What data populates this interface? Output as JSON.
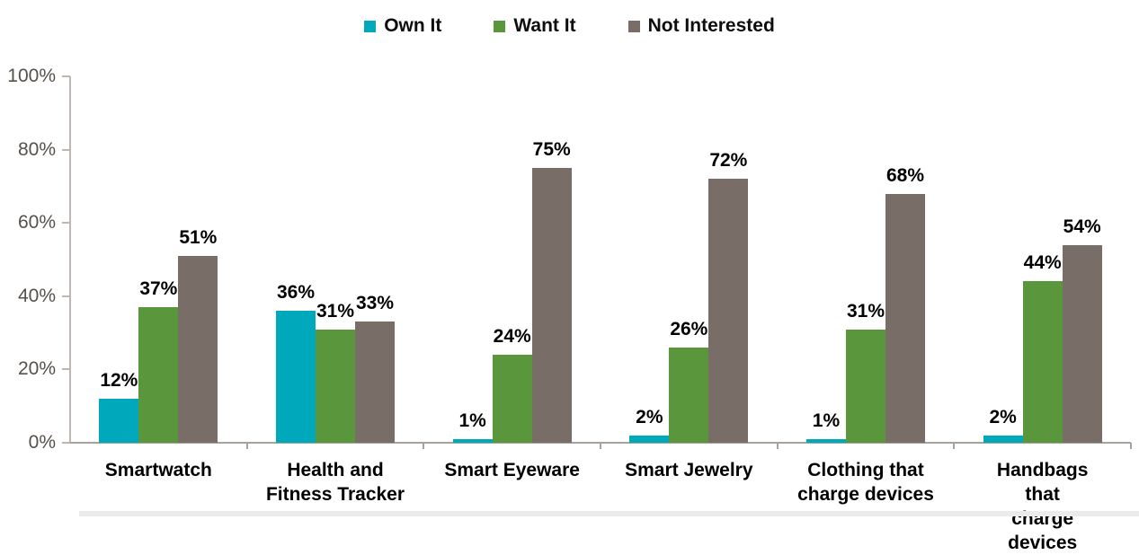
{
  "legend": {
    "items": [
      {
        "label": "Own It",
        "color": "#00A8BB"
      },
      {
        "label": "Want It",
        "color": "#5A973C"
      },
      {
        "label": "Not Interested",
        "color": "#786E67"
      }
    ]
  },
  "chart_data": {
    "type": "bar",
    "categories": [
      "Smartwatch",
      "Health and\nFitness Tracker",
      "Smart Eyeware",
      "Smart Jewelry",
      "Clothing that\ncharge devices",
      "Handbags that\ncharge devices"
    ],
    "series": [
      {
        "name": "Own It",
        "color": "#00A8BB",
        "values": [
          12,
          36,
          1,
          2,
          1,
          2
        ]
      },
      {
        "name": "Want It",
        "color": "#5A973C",
        "values": [
          37,
          31,
          24,
          26,
          31,
          44
        ]
      },
      {
        "name": "Not Interested",
        "color": "#786E67",
        "values": [
          51,
          33,
          75,
          72,
          68,
          54
        ]
      }
    ],
    "value_suffix": "%",
    "y_ticks": [
      {
        "value": 0,
        "label": "0%"
      },
      {
        "value": 20,
        "label": "20%"
      },
      {
        "value": 40,
        "label": "40%"
      },
      {
        "value": 60,
        "label": "60%"
      },
      {
        "value": 80,
        "label": "80%"
      },
      {
        "value": 100,
        "label": "100%"
      }
    ],
    "ylim": [
      0,
      100
    ],
    "grid": false,
    "legend_position": "top",
    "data_labels": true,
    "axis_colors": {
      "axis_line": "#bcb7b2",
      "tick_label": "#56504a"
    }
  }
}
